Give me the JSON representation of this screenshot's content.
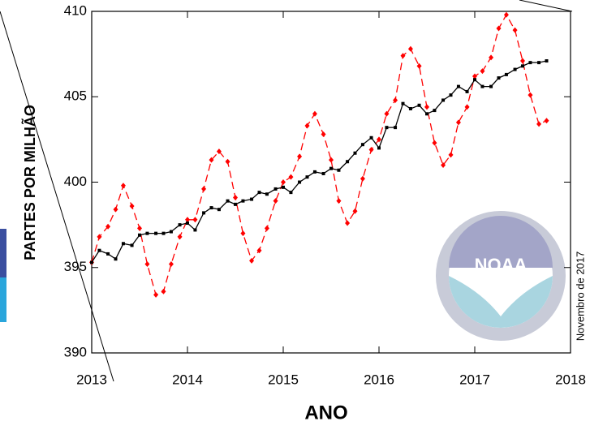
{
  "chart_data": {
    "type": "line",
    "y_label": "PARTES POR MILHÃO",
    "x_label": "ANO",
    "side_note": "Novembro de 2017",
    "logo_text": "NOAA",
    "x": [
      2013.0,
      2013.08,
      2013.17,
      2013.25,
      2013.33,
      2013.42,
      2013.5,
      2013.58,
      2013.67,
      2013.75,
      2013.83,
      2013.92,
      2014.0,
      2014.08,
      2014.17,
      2014.25,
      2014.33,
      2014.42,
      2014.5,
      2014.58,
      2014.67,
      2014.75,
      2014.83,
      2014.92,
      2015.0,
      2015.08,
      2015.17,
      2015.25,
      2015.33,
      2015.42,
      2015.5,
      2015.58,
      2015.67,
      2015.75,
      2015.83,
      2015.92,
      2016.0,
      2016.08,
      2016.17,
      2016.25,
      2016.33,
      2016.42,
      2016.5,
      2016.58,
      2016.67,
      2016.75,
      2016.83,
      2016.92,
      2017.0,
      2017.08,
      2017.17,
      2017.25,
      2017.33,
      2017.42,
      2017.5,
      2017.58,
      2017.67,
      2017.75
    ],
    "series": [
      {
        "color": "#ff0000",
        "dashed": true,
        "marker": "diamond",
        "values": [
          395.3,
          396.8,
          397.4,
          398.4,
          399.8,
          398.6,
          397.3,
          395.2,
          393.4,
          393.6,
          395.2,
          396.8,
          397.8,
          397.8,
          399.6,
          401.3,
          401.8,
          401.2,
          399.1,
          397.0,
          395.4,
          396.0,
          397.3,
          398.9,
          400.0,
          400.3,
          401.5,
          403.3,
          404.0,
          402.8,
          401.3,
          398.9,
          397.6,
          398.3,
          400.2,
          401.9,
          402.5,
          404.0,
          404.8,
          407.4,
          407.8,
          406.8,
          404.4,
          402.3,
          401.0,
          401.6,
          403.5,
          404.4,
          406.2,
          406.5,
          407.3,
          409.0,
          409.8,
          408.9,
          407.1,
          405.1,
          403.4,
          403.6
        ]
      },
      {
        "color": "#000000",
        "dashed": false,
        "marker": "square",
        "values": [
          395.3,
          396.0,
          395.8,
          395.5,
          396.4,
          396.3,
          396.9,
          397.0,
          397.0,
          397.0,
          397.1,
          397.5,
          397.6,
          397.2,
          398.2,
          398.5,
          398.4,
          398.9,
          398.7,
          398.9,
          399.0,
          399.4,
          399.3,
          399.6,
          399.7,
          399.4,
          400.0,
          400.3,
          400.6,
          400.5,
          400.8,
          400.7,
          401.2,
          401.7,
          402.2,
          402.6,
          402.0,
          403.2,
          403.2,
          404.6,
          404.3,
          404.5,
          404.0,
          404.2,
          404.8,
          405.1,
          405.6,
          405.3,
          406.0,
          405.6,
          405.6,
          406.1,
          406.3,
          406.6,
          406.8,
          407.0,
          407.0,
          407.1
        ]
      }
    ],
    "xlim": [
      2013,
      2018
    ],
    "xticks": [
      2013,
      2014,
      2015,
      2016,
      2017,
      2018
    ],
    "ylim": [
      390,
      410
    ],
    "yticks": [
      390,
      395,
      400,
      405,
      410
    ]
  }
}
